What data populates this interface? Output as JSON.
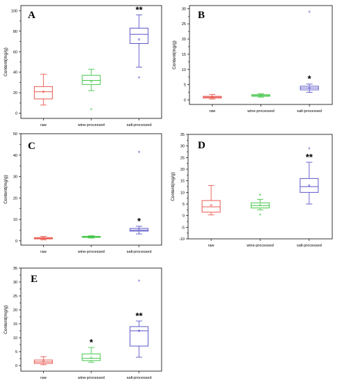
{
  "chart_data": [
    {
      "type": "box",
      "panel": "A",
      "ylabel": "Content(mg/g)",
      "ylim": [
        -5,
        105
      ],
      "yticks": [
        0,
        20,
        40,
        60,
        80,
        100
      ],
      "categories": [
        "raw",
        "wine-processed",
        "salt-processed"
      ],
      "colors": [
        "#e8584f",
        "#45c64a",
        "#5a55c8"
      ],
      "boxes": [
        {
          "whisker_low": 8,
          "q1": 14,
          "median": 21,
          "q3": 26,
          "whisker_high": 38,
          "mean": 21,
          "outliers": []
        },
        {
          "whisker_low": 22,
          "q1": 28,
          "median": 32,
          "q3": 37,
          "whisker_high": 43,
          "mean": 31,
          "outliers": [
            4
          ]
        },
        {
          "whisker_low": 45,
          "q1": 68,
          "median": 77,
          "q3": 83,
          "whisker_high": 96,
          "mean": 72,
          "outliers": [
            35
          ]
        }
      ],
      "significance": [
        "",
        "",
        "**"
      ]
    },
    {
      "type": "box",
      "panel": "B",
      "ylabel": "Content(mg/g)",
      "ylim": [
        -1.5,
        31
      ],
      "yticks": [
        0,
        5,
        10,
        15,
        20,
        25,
        30
      ],
      "categories": [
        "raw",
        "wine-processed",
        "salt-processed"
      ],
      "colors": [
        "#e8584f",
        "#45c64a",
        "#5a55c8"
      ],
      "boxes": [
        {
          "whisker_low": 0.3,
          "q1": 0.6,
          "median": 0.9,
          "q3": 1.2,
          "whisker_high": 1.8,
          "mean": 0.9,
          "outliers": []
        },
        {
          "whisker_low": 0.9,
          "q1": 1.2,
          "median": 1.5,
          "q3": 1.7,
          "whisker_high": 2.0,
          "mean": 1.5,
          "outliers": []
        },
        {
          "whisker_low": 2.5,
          "q1": 3.3,
          "median": 3.9,
          "q3": 4.5,
          "whisker_high": 5.2,
          "mean": 3.9,
          "outliers": [
            29
          ]
        }
      ],
      "significance": [
        "",
        "",
        "*"
      ]
    },
    {
      "type": "box",
      "panel": "C",
      "ylabel": "Content(mg/g)",
      "ylim": [
        -2,
        50
      ],
      "yticks": [
        0,
        10,
        20,
        30,
        40,
        50
      ],
      "categories": [
        "raw",
        "wine-processed",
        "salt-processed"
      ],
      "colors": [
        "#e8584f",
        "#45c64a",
        "#5a55c8"
      ],
      "boxes": [
        {
          "whisker_low": 0.5,
          "q1": 0.9,
          "median": 1.2,
          "q3": 1.5,
          "whisker_high": 2.1,
          "mean": 1.2,
          "outliers": []
        },
        {
          "whisker_low": 1.3,
          "q1": 1.6,
          "median": 1.9,
          "q3": 2.1,
          "whisker_high": 2.4,
          "mean": 1.9,
          "outliers": []
        },
        {
          "whisker_low": 3.2,
          "q1": 4.5,
          "median": 5.0,
          "q3": 5.8,
          "whisker_high": 6.8,
          "mean": 5.4,
          "outliers": [
            41.5
          ]
        }
      ],
      "significance": [
        "",
        "",
        "*"
      ]
    },
    {
      "type": "box",
      "panel": "D",
      "ylabel": "Content(mg/g)",
      "ylim": [
        -10,
        35
      ],
      "yticks": [
        -10,
        -5,
        0,
        5,
        10,
        15,
        20,
        25,
        30,
        35
      ],
      "categories": [
        "raw",
        "wine-processed",
        "salt-processed"
      ],
      "colors": [
        "#e8584f",
        "#45c64a",
        "#5a55c8"
      ],
      "boxes": [
        {
          "whisker_low": 0.3,
          "q1": 1.5,
          "median": 3.8,
          "q3": 6.5,
          "whisker_high": 13,
          "mean": 4.5,
          "outliers": []
        },
        {
          "whisker_low": 2.5,
          "q1": 3.3,
          "median": 4.3,
          "q3": 5.5,
          "whisker_high": 7,
          "mean": 4.5,
          "outliers": [
            0.5,
            9
          ]
        },
        {
          "whisker_low": 5,
          "q1": 10,
          "median": 12.5,
          "q3": 16,
          "whisker_high": 23,
          "mean": 13,
          "outliers": [
            29
          ]
        }
      ],
      "significance": [
        "",
        "",
        "**"
      ]
    },
    {
      "type": "box",
      "panel": "E",
      "ylabel": "Content(mg/g)",
      "ylim": [
        -2,
        35
      ],
      "yticks": [
        0,
        5,
        10,
        15,
        20,
        25,
        30,
        35
      ],
      "categories": [
        "raw",
        "wine-processed",
        "salt-processed"
      ],
      "colors": [
        "#e8584f",
        "#45c64a",
        "#5a55c8"
      ],
      "boxes": [
        {
          "whisker_low": 0.3,
          "q1": 0.8,
          "median": 1.3,
          "q3": 2.0,
          "whisker_high": 3.2,
          "mean": 1.5,
          "outliers": []
        },
        {
          "whisker_low": 1.2,
          "q1": 1.8,
          "median": 2.6,
          "q3": 4.2,
          "whisker_high": 6.5,
          "mean": 2.8,
          "outliers": []
        },
        {
          "whisker_low": 3,
          "q1": 7,
          "median": 12.5,
          "q3": 14,
          "whisker_high": 16,
          "mean": 12.5,
          "outliers": [
            30.5
          ]
        }
      ],
      "significance": [
        "",
        "*",
        "**"
      ]
    }
  ]
}
